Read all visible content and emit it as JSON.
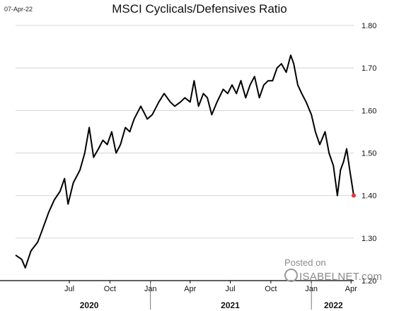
{
  "date_stamp": "07-Apr-22",
  "watermark": {
    "line1": "Posted on",
    "line2": "ISABELNET.com"
  },
  "chart_data": {
    "type": "line",
    "title": "MSCI Cyclicals/Defensives Ratio",
    "xlabel": "",
    "ylabel": "",
    "x_range": [
      "2020-03-01",
      "2022-04-07"
    ],
    "ylim": [
      1.2,
      1.8
    ],
    "y_ticks": [
      1.2,
      1.3,
      1.4,
      1.5,
      1.6,
      1.7,
      1.8
    ],
    "y_tick_labels": [
      "1.20",
      "1.30",
      "1.40",
      "1.50",
      "1.60",
      "1.70",
      "1.80"
    ],
    "x_ticks": [
      {
        "date": "2020-07-01",
        "label": "Jul"
      },
      {
        "date": "2020-10-01",
        "label": "Oct"
      },
      {
        "date": "2021-01-01",
        "label": "Jan"
      },
      {
        "date": "2021-04-01",
        "label": "Apr"
      },
      {
        "date": "2021-07-01",
        "label": "Jul"
      },
      {
        "date": "2021-10-01",
        "label": "Oct"
      },
      {
        "date": "2022-01-01",
        "label": "Jan"
      },
      {
        "date": "2022-04-01",
        "label": "Apr"
      }
    ],
    "year_labels": [
      {
        "date": "2020-08-15",
        "label": "2020"
      },
      {
        "date": "2021-07-01",
        "label": "2021"
      },
      {
        "date": "2022-02-20",
        "label": "2022"
      }
    ],
    "year_separators": [
      "2021-01-01",
      "2022-01-01"
    ],
    "grid": "horizontal",
    "line_color": "#000000",
    "marker_color": "#e8352e",
    "series": [
      {
        "x": [
          "2020-03-01",
          "2020-03-15",
          "2020-03-23",
          "2020-04-05",
          "2020-04-20",
          "2020-05-01",
          "2020-05-15",
          "2020-05-28",
          "2020-06-10",
          "2020-06-20",
          "2020-06-28",
          "2020-07-10",
          "2020-07-25",
          "2020-08-05",
          "2020-08-15",
          "2020-08-25",
          "2020-09-05",
          "2020-09-15",
          "2020-09-25",
          "2020-10-05",
          "2020-10-15",
          "2020-10-25",
          "2020-11-05",
          "2020-11-15",
          "2020-11-25",
          "2020-12-10",
          "2020-12-25",
          "2021-01-05",
          "2021-01-20",
          "2021-02-01",
          "2021-02-15",
          "2021-02-25",
          "2021-03-10",
          "2021-03-20",
          "2021-04-01",
          "2021-04-10",
          "2021-04-20",
          "2021-05-01",
          "2021-05-10",
          "2021-05-20",
          "2021-06-01",
          "2021-06-15",
          "2021-06-25",
          "2021-07-05",
          "2021-07-15",
          "2021-07-25",
          "2021-08-05",
          "2021-08-15",
          "2021-08-25",
          "2021-09-05",
          "2021-09-15",
          "2021-09-25",
          "2021-10-05",
          "2021-10-15",
          "2021-10-25",
          "2021-11-05",
          "2021-11-15",
          "2021-11-22",
          "2021-12-01",
          "2021-12-10",
          "2021-12-20",
          "2022-01-01",
          "2022-01-10",
          "2022-01-20",
          "2022-02-01",
          "2022-02-10",
          "2022-02-20",
          "2022-03-01",
          "2022-03-08",
          "2022-03-15",
          "2022-03-22",
          "2022-03-29",
          "2022-04-07"
        ],
        "values": [
          1.26,
          1.25,
          1.23,
          1.27,
          1.29,
          1.32,
          1.36,
          1.39,
          1.41,
          1.44,
          1.38,
          1.43,
          1.46,
          1.5,
          1.56,
          1.49,
          1.51,
          1.53,
          1.52,
          1.55,
          1.5,
          1.52,
          1.56,
          1.55,
          1.58,
          1.61,
          1.58,
          1.59,
          1.62,
          1.64,
          1.62,
          1.61,
          1.62,
          1.63,
          1.62,
          1.67,
          1.61,
          1.64,
          1.63,
          1.59,
          1.62,
          1.65,
          1.64,
          1.66,
          1.64,
          1.67,
          1.63,
          1.66,
          1.68,
          1.63,
          1.66,
          1.67,
          1.67,
          1.7,
          1.71,
          1.69,
          1.73,
          1.71,
          1.66,
          1.64,
          1.62,
          1.59,
          1.55,
          1.52,
          1.55,
          1.5,
          1.47,
          1.4,
          1.46,
          1.48,
          1.51,
          1.46,
          1.4
        ]
      }
    ]
  }
}
